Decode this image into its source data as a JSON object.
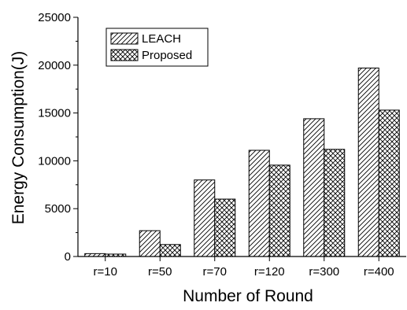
{
  "chart_data": {
    "type": "bar",
    "categories": [
      "r=10",
      "r=50",
      "r=70",
      "r=120",
      "r=300",
      "r=400"
    ],
    "series": [
      {
        "name": "LEACH",
        "values": [
          300,
          2700,
          8000,
          11100,
          14400,
          19700
        ],
        "pattern": "diagonal-hatch"
      },
      {
        "name": "Proposed",
        "values": [
          250,
          1250,
          6000,
          9550,
          11200,
          15300
        ],
        "pattern": "cross-hatch"
      }
    ],
    "title": "",
    "xlabel": "Number of Round",
    "ylabel": "Energy Consumption(J)",
    "ylim": [
      0,
      25000
    ],
    "yticks": [
      0,
      5000,
      10000,
      15000,
      20000,
      25000
    ],
    "grid": false,
    "legend_position": "top-left"
  }
}
